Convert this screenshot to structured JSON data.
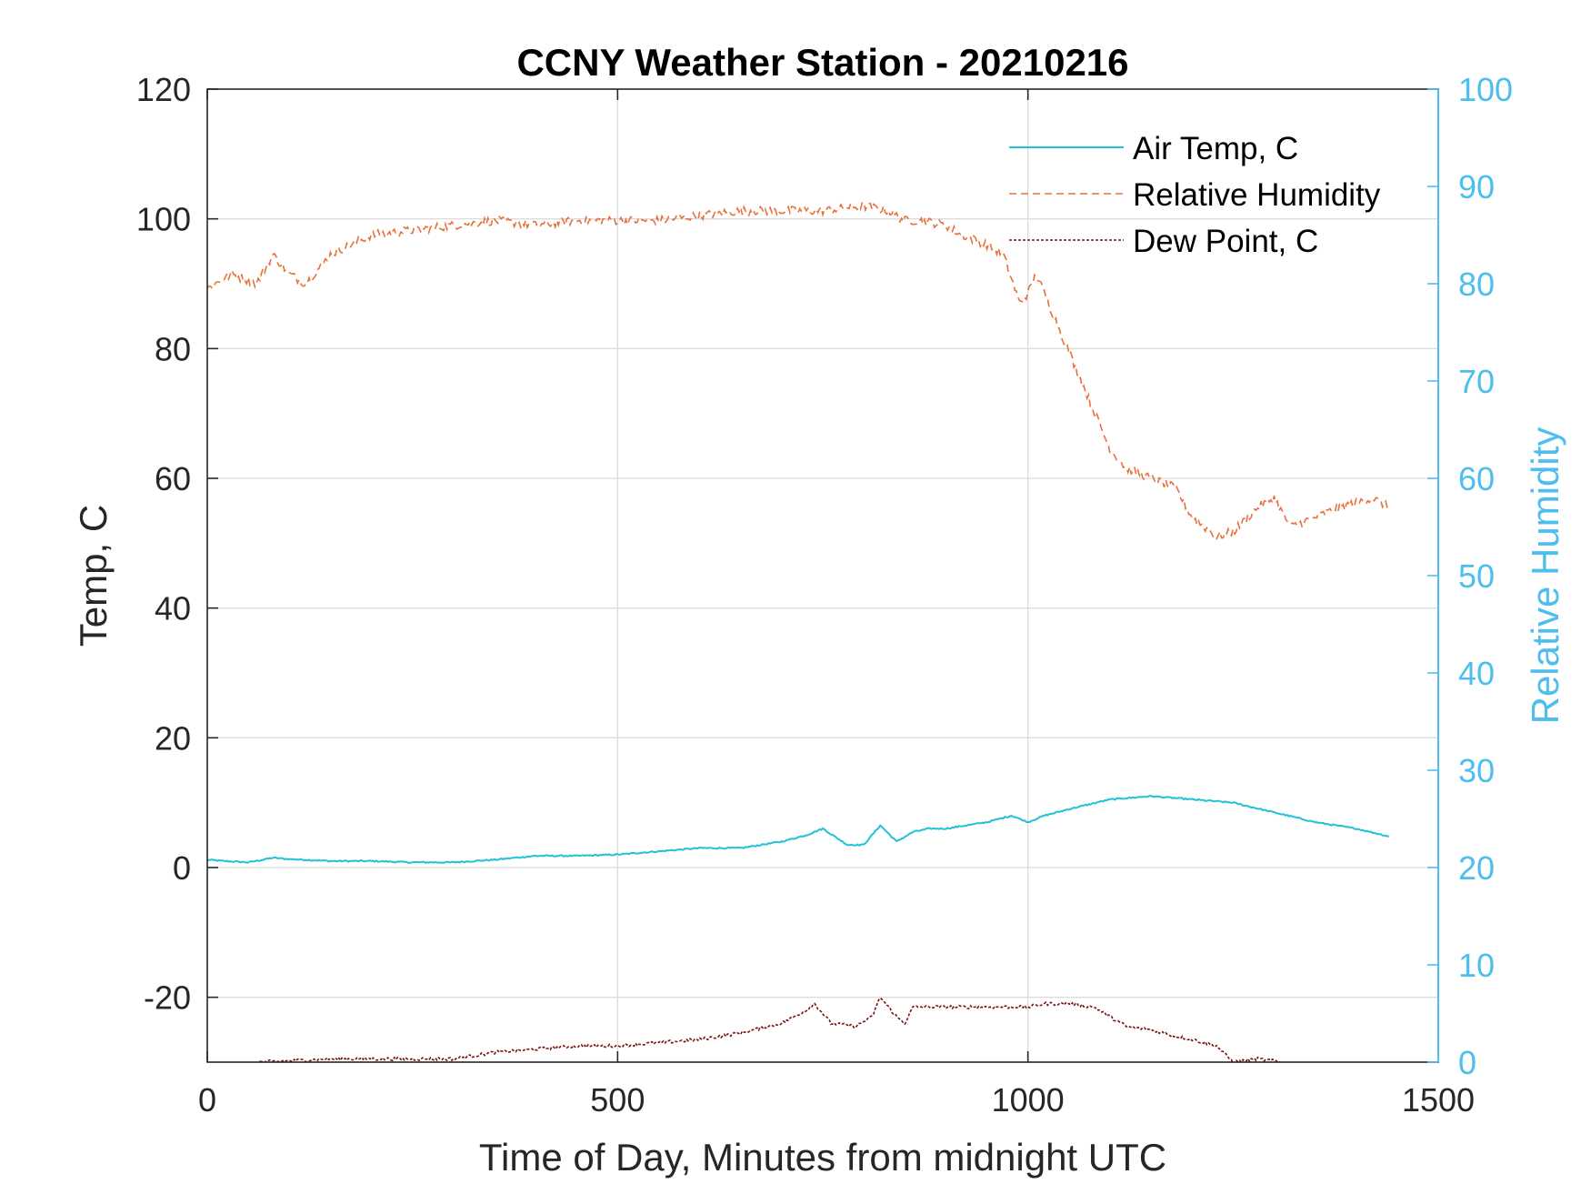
{
  "chart_data": {
    "type": "line",
    "title": "CCNY Weather Station - 20210216",
    "xlabel": "Time of Day, Minutes from midnight UTC",
    "ylabel_left": "Temp, C",
    "ylabel_right": "Relative Humidity",
    "xlim": [
      0,
      1500
    ],
    "ylim_left": [
      -30,
      120
    ],
    "ylim_right": [
      0,
      100
    ],
    "xticks": [
      0,
      500,
      1000,
      1500
    ],
    "yticks_left": [
      -20,
      0,
      20,
      40,
      60,
      80,
      100,
      120
    ],
    "yticks_right": [
      0,
      10,
      20,
      30,
      40,
      50,
      60,
      70,
      80,
      90,
      100
    ],
    "grid": true,
    "legend_position": "top-right",
    "colors": {
      "air_temp": "#21C1D6",
      "relative_humidity": "#E8703A",
      "dew_point": "#7A1010",
      "right_axis": "#4DBEEE"
    },
    "series": [
      {
        "name": "Air Temp, C",
        "axis": "left",
        "style": "solid",
        "color": "#21C1D6",
        "x": [
          0,
          20,
          50,
          80,
          100,
          150,
          200,
          250,
          300,
          350,
          400,
          450,
          500,
          550,
          600,
          650,
          700,
          730,
          750,
          780,
          800,
          820,
          840,
          860,
          880,
          900,
          950,
          980,
          1000,
          1020,
          1050,
          1100,
          1150,
          1200,
          1250,
          1300,
          1350,
          1400,
          1440
        ],
        "values": [
          1.2,
          1.0,
          0.8,
          1.5,
          1.3,
          1.0,
          1.0,
          0.8,
          0.8,
          1.2,
          1.8,
          1.8,
          2.0,
          2.5,
          3.0,
          3.0,
          4.0,
          5.0,
          6.0,
          3.5,
          3.5,
          6.5,
          4.0,
          5.5,
          6.0,
          6.0,
          7.0,
          8.0,
          7.0,
          8.0,
          9.0,
          10.5,
          11.0,
          10.5,
          10.0,
          8.5,
          7.0,
          6.0,
          4.8
        ]
      },
      {
        "name": "Relative Humidity",
        "axis": "right",
        "style": "dashed",
        "color": "#E8703A",
        "x": [
          0,
          30,
          60,
          80,
          100,
          120,
          150,
          200,
          250,
          300,
          350,
          400,
          450,
          500,
          550,
          600,
          650,
          700,
          750,
          800,
          830,
          850,
          870,
          900,
          920,
          950,
          970,
          990,
          1000,
          1010,
          1020,
          1040,
          1060,
          1080,
          1100,
          1120,
          1150,
          1180,
          1200,
          1230,
          1250,
          1280,
          1300,
          1320,
          1350,
          1380,
          1420,
          1440
        ],
        "values": [
          79.5,
          81,
          80,
          83,
          81,
          80,
          83,
          85,
          85.5,
          86,
          86.5,
          86,
          86.5,
          86.5,
          86.5,
          87,
          87.5,
          87.5,
          87.5,
          88,
          87.5,
          86.5,
          86.5,
          86,
          85,
          84,
          83,
          78,
          79,
          81,
          79,
          75,
          71,
          67,
          63,
          61,
          60,
          59,
          56,
          54,
          54.5,
          57,
          58,
          55,
          56,
          57,
          58,
          57
        ]
      },
      {
        "name": "Dew Point, C",
        "axis": "left",
        "style": "dotted",
        "color": "#7A1010",
        "x": [
          60,
          100,
          150,
          200,
          250,
          300,
          350,
          400,
          450,
          500,
          550,
          600,
          650,
          700,
          730,
          740,
          760,
          790,
          810,
          820,
          840,
          850,
          860,
          880,
          900,
          950,
          1000,
          1020,
          1050,
          1080,
          1100,
          1120,
          1150,
          1180,
          1200,
          1230,
          1250,
          1280,
          1310
        ],
        "values": [
          -30,
          -29.8,
          -29.5,
          -29.5,
          -29.5,
          -29.5,
          -28.5,
          -28,
          -27.5,
          -27.5,
          -27,
          -26.5,
          -25.5,
          -24,
          -22,
          -21,
          -24,
          -24.5,
          -23,
          -20,
          -23,
          -24,
          -21.5,
          -21.5,
          -21.5,
          -21.5,
          -21.5,
          -21,
          -21,
          -21.5,
          -23,
          -24.5,
          -25,
          -26,
          -26.5,
          -27.5,
          -30,
          -29.5,
          -30
        ]
      }
    ]
  }
}
